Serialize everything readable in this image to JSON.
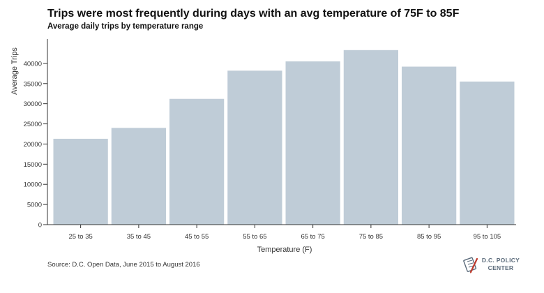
{
  "title": "Trips were most frequently during days with an avg temperature of 75F to 85F",
  "subtitle": "Average daily trips by temperature range",
  "source": "Source: D.C. Open Data, June 2015 to August 2016",
  "logo": {
    "line1": "D.C. POLICY",
    "line2": "CENTER",
    "icon": "pen-document-icon"
  },
  "colors": {
    "bar": "#bfccd7",
    "axis": "#333333",
    "logo_red": "#c0392b",
    "logo_gray": "#5a6a7a"
  },
  "chart_data": {
    "type": "bar",
    "categories": [
      "25 to 35",
      "35 to 45",
      "45 to 55",
      "55 to 65",
      "65 to 75",
      "75 to 85",
      "85 to 95",
      "95 to 105"
    ],
    "values": [
      21300,
      24000,
      31200,
      38200,
      40500,
      43300,
      39200,
      35500
    ],
    "xlabel": "Temperature (F)",
    "ylabel": "Average Trips",
    "ylim": [
      0,
      45000
    ],
    "yticks": [
      0,
      5000,
      10000,
      15000,
      20000,
      25000,
      30000,
      35000,
      40000
    ],
    "grid": false,
    "legend": "none"
  }
}
